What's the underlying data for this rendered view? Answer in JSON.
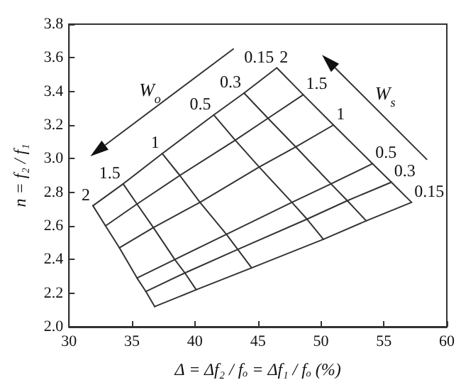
{
  "chart_data": {
    "type": "line",
    "xlabel": "Δ = Δf₂ / fₒ = Δf₁ / fₒ (%)",
    "ylabel": "n = f₂ / f₁",
    "xlim": [
      30,
      60
    ],
    "xticks": [
      30,
      35,
      40,
      45,
      50,
      55,
      60
    ],
    "ylim": [
      2,
      3.8
    ],
    "yticks": [
      {
        "value": 2,
        "label": "2.0"
      },
      2.2,
      2.4,
      2.6,
      2.8,
      {
        "value": 3,
        "label": "3.0"
      },
      3.2,
      3.4,
      3.6,
      3.8
    ],
    "marker": "none",
    "line_style": "solid",
    "annotations": [
      "W$_{o}$",
      "W$_{s}$"
    ],
    "series": [
      {
        "name": "2",
        "color": "#333333",
        "x": [
          36.8,
          36.1,
          35.4,
          34.0,
          32.9,
          31.9
        ],
        "values": [
          2.12,
          2.21,
          2.29,
          2.47,
          2.6,
          2.72
        ]
      },
      {
        "name": "1.5",
        "color": "#333333",
        "x": [
          40.1,
          39.2,
          38.4,
          36.7,
          35.4,
          34.3
        ],
        "values": [
          2.22,
          2.32,
          2.4,
          2.59,
          2.73,
          2.85
        ]
      },
      {
        "name": "1",
        "color": "#333333",
        "x": [
          44.5,
          43.4,
          42.5,
          40.4,
          38.8,
          37.4
        ],
        "values": [
          2.35,
          2.46,
          2.55,
          2.74,
          2.9,
          3.03
        ]
      },
      {
        "name": "0.5",
        "color": "#333333",
        "x": [
          50.2,
          48.9,
          47.7,
          45.1,
          43.2,
          41.5
        ],
        "values": [
          2.52,
          2.64,
          2.74,
          2.95,
          3.11,
          3.26
        ]
      },
      {
        "name": "0.3",
        "color": "#333333",
        "x": [
          53.6,
          52.1,
          50.8,
          48.0,
          45.8,
          43.9
        ],
        "values": [
          2.63,
          2.75,
          2.85,
          3.07,
          3.24,
          3.39
        ]
      },
      {
        "name": "0.15",
        "color": "#333333",
        "x": [
          57.2,
          55.6,
          54.1,
          51.0,
          48.6,
          46.5
        ],
        "values": [
          2.74,
          2.86,
          2.97,
          3.2,
          3.38,
          3.54
        ]
      },
      {
        "name": "2",
        "color": "#333333",
        "x": [
          31.9,
          34.3,
          37.4,
          41.5,
          43.9,
          46.5
        ],
        "values": [
          2.72,
          2.85,
          3.03,
          3.26,
          3.39,
          3.54
        ]
      },
      {
        "name": "1.5",
        "color": "#333333",
        "x": [
          32.9,
          35.4,
          38.8,
          43.2,
          45.8,
          48.6
        ],
        "values": [
          2.6,
          2.73,
          2.9,
          3.11,
          3.24,
          3.38
        ]
      },
      {
        "name": "1",
        "color": "#333333",
        "x": [
          34.0,
          36.7,
          40.4,
          45.1,
          48.0,
          51.0
        ],
        "values": [
          2.47,
          2.59,
          2.74,
          2.95,
          3.07,
          3.2
        ]
      },
      {
        "name": "0.5",
        "color": "#333333",
        "x": [
          35.4,
          38.4,
          42.5,
          47.7,
          50.8,
          54.1
        ],
        "values": [
          2.29,
          2.4,
          2.55,
          2.74,
          2.85,
          2.97
        ]
      },
      {
        "name": "0.3",
        "color": "#333333",
        "x": [
          36.1,
          39.2,
          43.4,
          48.9,
          52.1,
          55.6
        ],
        "values": [
          2.21,
          2.32,
          2.46,
          2.64,
          2.75,
          2.86
        ]
      },
      {
        "name": "0.15",
        "color": "#333333",
        "x": [
          36.8,
          40.1,
          44.5,
          50.2,
          53.6,
          57.2
        ],
        "values": [
          2.12,
          2.22,
          2.35,
          2.52,
          2.63,
          2.74
        ]
      }
    ]
  }
}
